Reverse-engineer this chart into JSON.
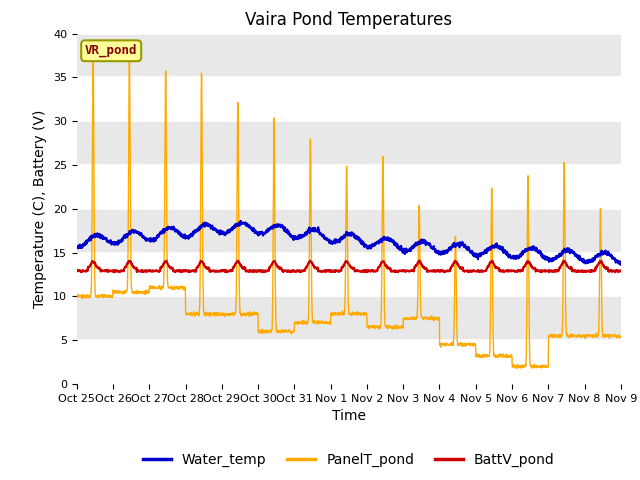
{
  "title": "Vaira Pond Temperatures",
  "xlabel": "Time",
  "ylabel": "Temperature (C), Battery (V)",
  "ylim": [
    0,
    40
  ],
  "yticks": [
    0,
    5,
    10,
    15,
    20,
    25,
    30,
    35,
    40
  ],
  "xtick_labels": [
    "Oct 25",
    "Oct 26",
    "Oct 27",
    "Oct 28",
    "Oct 29",
    "Oct 30",
    "Oct 31",
    "Nov 1",
    "Nov 2",
    "Nov 3",
    "Nov 4",
    "Nov 5",
    "Nov 6",
    "Nov 7",
    "Nov 8",
    "Nov 9"
  ],
  "legend_entries": [
    "Water_temp",
    "PanelT_pond",
    "BattV_pond"
  ],
  "water_color": "#0000cc",
  "panel_color": "#ffaa00",
  "batt_color": "#cc0000",
  "background_color": "#e8e8e8",
  "band_color": "#d0d0d0",
  "inset_label": "VR_pond",
  "inset_label_color": "#880000",
  "inset_bg": "#ffff99",
  "grid_color": "white",
  "title_fontsize": 12,
  "axis_fontsize": 10,
  "tick_fontsize": 8,
  "legend_fontsize": 10
}
